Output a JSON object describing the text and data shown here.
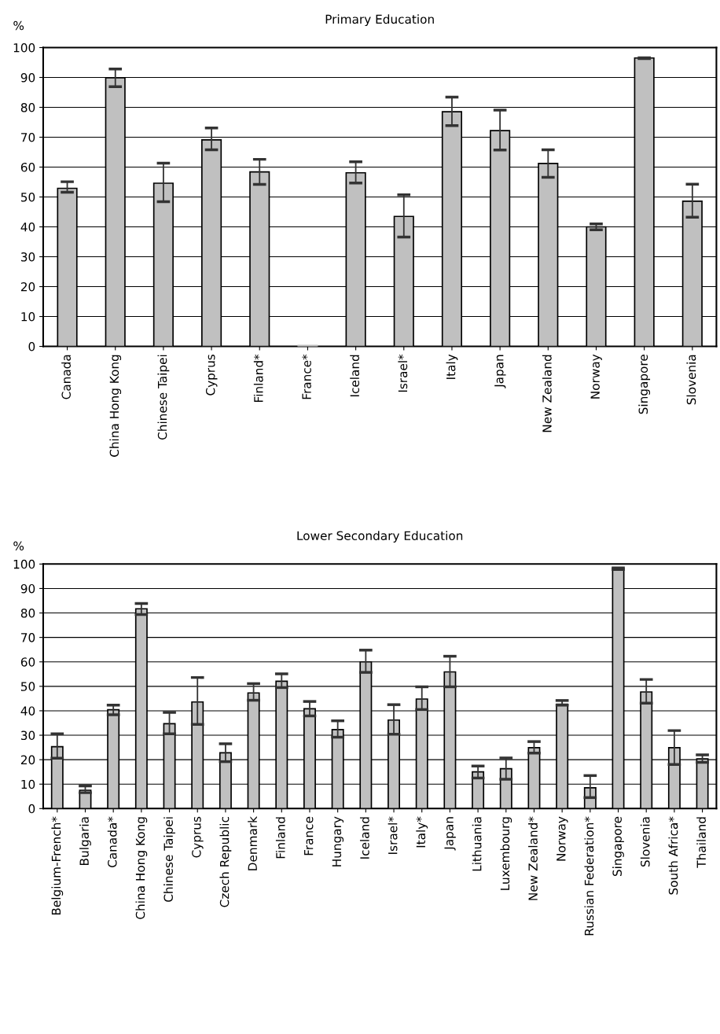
{
  "chart_data": [
    {
      "type": "bar",
      "title": "Primary Education",
      "ylabel": "%",
      "categories": [
        "Canada",
        "China Hong Kong",
        "Chinese Taipei",
        "Cyprus",
        "Finland*",
        "France*",
        "Iceland",
        "Israel*",
        "Italy",
        "Japan",
        "New Zealand",
        "Norway",
        "Singapore",
        "Slovenia"
      ],
      "values": [
        52.9,
        89.9,
        54.6,
        69.1,
        58.4,
        0.3,
        58.1,
        43.5,
        78.5,
        72.2,
        61.2,
        40.0,
        96.5,
        48.6
      ],
      "errors": [
        [
          51.6,
          55.1
        ],
        [
          86.9,
          92.8
        ],
        [
          48.4,
          61.3
        ],
        [
          65.8,
          73.1
        ],
        [
          54.2,
          62.6
        ],
        null,
        [
          54.7,
          61.8
        ],
        [
          36.6,
          50.7
        ],
        [
          73.9,
          83.4
        ],
        [
          65.7,
          79.1
        ],
        [
          56.6,
          65.8
        ],
        [
          39.0,
          41.0
        ],
        [
          96.3,
          96.6
        ],
        [
          43.2,
          54.3
        ]
      ],
      "color": "#c0c0c0",
      "ylim": [
        0,
        100
      ],
      "yticks": [
        0,
        10,
        20,
        30,
        40,
        50,
        60,
        70,
        80,
        90,
        100
      ],
      "grid": "y"
    },
    {
      "type": "bar",
      "title": "Lower Secondary Education",
      "ylabel": "%",
      "categories": [
        "Belgium-French*",
        "Bulgaria",
        "Canada*",
        "China Hong Kong",
        "Chinese Taipei",
        "Cyprus",
        "Czech Republic",
        "Denmark",
        "Finland",
        "France",
        "Hungary",
        "Iceland",
        "Israel*",
        "Italy*",
        "Japan",
        "Lithuania",
        "Luxembourg",
        "New Zealand*",
        "Norway",
        "Russian Federation*",
        "Singapore",
        "Slovenia",
        "South Africa*",
        "Thailand"
      ],
      "values": [
        25.3,
        7.5,
        40.4,
        81.7,
        34.7,
        43.6,
        22.8,
        47.3,
        52.1,
        40.8,
        32.3,
        60.0,
        36.2,
        44.8,
        55.9,
        15.0,
        16.3,
        24.9,
        42.7,
        8.5,
        98.1,
        47.7,
        24.9,
        20.3
      ],
      "errors": [
        [
          20.6,
          30.6
        ],
        [
          6.5,
          9.3
        ],
        [
          38.4,
          42.3
        ],
        [
          79.4,
          83.9
        ],
        [
          30.6,
          39.3
        ],
        [
          34.4,
          53.6
        ],
        [
          19.2,
          26.5
        ],
        [
          44.3,
          51.1
        ],
        [
          49.5,
          55.1
        ],
        [
          37.9,
          43.8
        ],
        [
          29.2,
          35.9
        ],
        [
          55.7,
          64.8
        ],
        [
          30.4,
          42.5
        ],
        [
          40.5,
          49.8
        ],
        [
          49.8,
          62.3
        ],
        [
          12.5,
          17.4
        ],
        [
          12.0,
          20.7
        ],
        [
          22.7,
          27.4
        ],
        [
          42.3,
          44.2
        ],
        [
          4.5,
          13.5
        ],
        [
          97.8,
          98.4
        ],
        [
          43.1,
          52.8
        ],
        [
          18.0,
          31.9
        ],
        [
          18.9,
          22.0
        ]
      ],
      "color": "#c0c0c0",
      "ylim": [
        0,
        100
      ],
      "yticks": [
        0,
        10,
        20,
        30,
        40,
        50,
        60,
        70,
        80,
        90,
        100
      ],
      "grid": "y"
    }
  ]
}
